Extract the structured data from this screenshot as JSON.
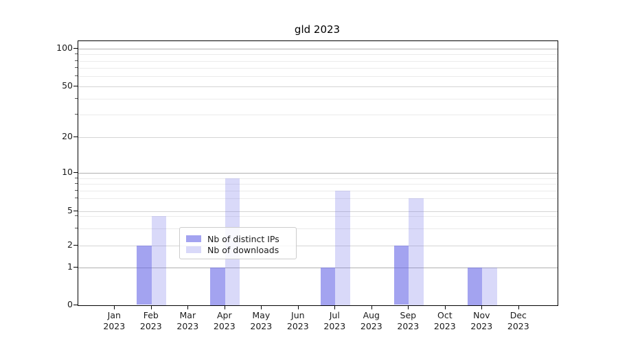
{
  "chart_data": {
    "type": "bar",
    "title": "gld 2023",
    "categories": [
      {
        "month": "Jan",
        "year": "2023"
      },
      {
        "month": "Feb",
        "year": "2023"
      },
      {
        "month": "Mar",
        "year": "2023"
      },
      {
        "month": "Apr",
        "year": "2023"
      },
      {
        "month": "May",
        "year": "2023"
      },
      {
        "month": "Jun",
        "year": "2023"
      },
      {
        "month": "Jul",
        "year": "2023"
      },
      {
        "month": "Aug",
        "year": "2023"
      },
      {
        "month": "Sep",
        "year": "2023"
      },
      {
        "month": "Oct",
        "year": "2023"
      },
      {
        "month": "Nov",
        "year": "2023"
      },
      {
        "month": "Dec",
        "year": "2023"
      }
    ],
    "series": [
      {
        "name": "Nb of distinct IPs",
        "color": "rgba(102,102,230,0.6)",
        "values": [
          0,
          2,
          0,
          1,
          0,
          0,
          1,
          0,
          2,
          0,
          1,
          0
        ]
      },
      {
        "name": "Nb of downloads",
        "color": "rgba(102,102,230,0.25)",
        "values": [
          0,
          4,
          0,
          9,
          0,
          0,
          7,
          0,
          6,
          0,
          1,
          0
        ]
      }
    ],
    "yticks": [
      0,
      1,
      2,
      5,
      10,
      20,
      50,
      100
    ],
    "major_gridline_values": [
      1,
      10,
      100
    ],
    "mid_gridline_values": [
      2,
      5,
      20,
      50
    ],
    "minor_gridline_values": [
      3,
      4,
      6,
      7,
      8,
      9,
      30,
      40,
      60,
      70,
      80,
      90
    ],
    "scale": "symlog",
    "ylim": [
      0,
      115
    ],
    "grid": true,
    "legend_position": "lower center",
    "colors": {
      "grid_major": "#b0b0b0",
      "grid_mid": "#d4d4d4",
      "grid_minor": "#ebebeb",
      "axis": "#000000",
      "text": "#1a1a1a",
      "legend_border": "#cccccc",
      "legend_bg": "rgba(255,255,255,0.8)",
      "bar_base": "#6666e6"
    }
  }
}
